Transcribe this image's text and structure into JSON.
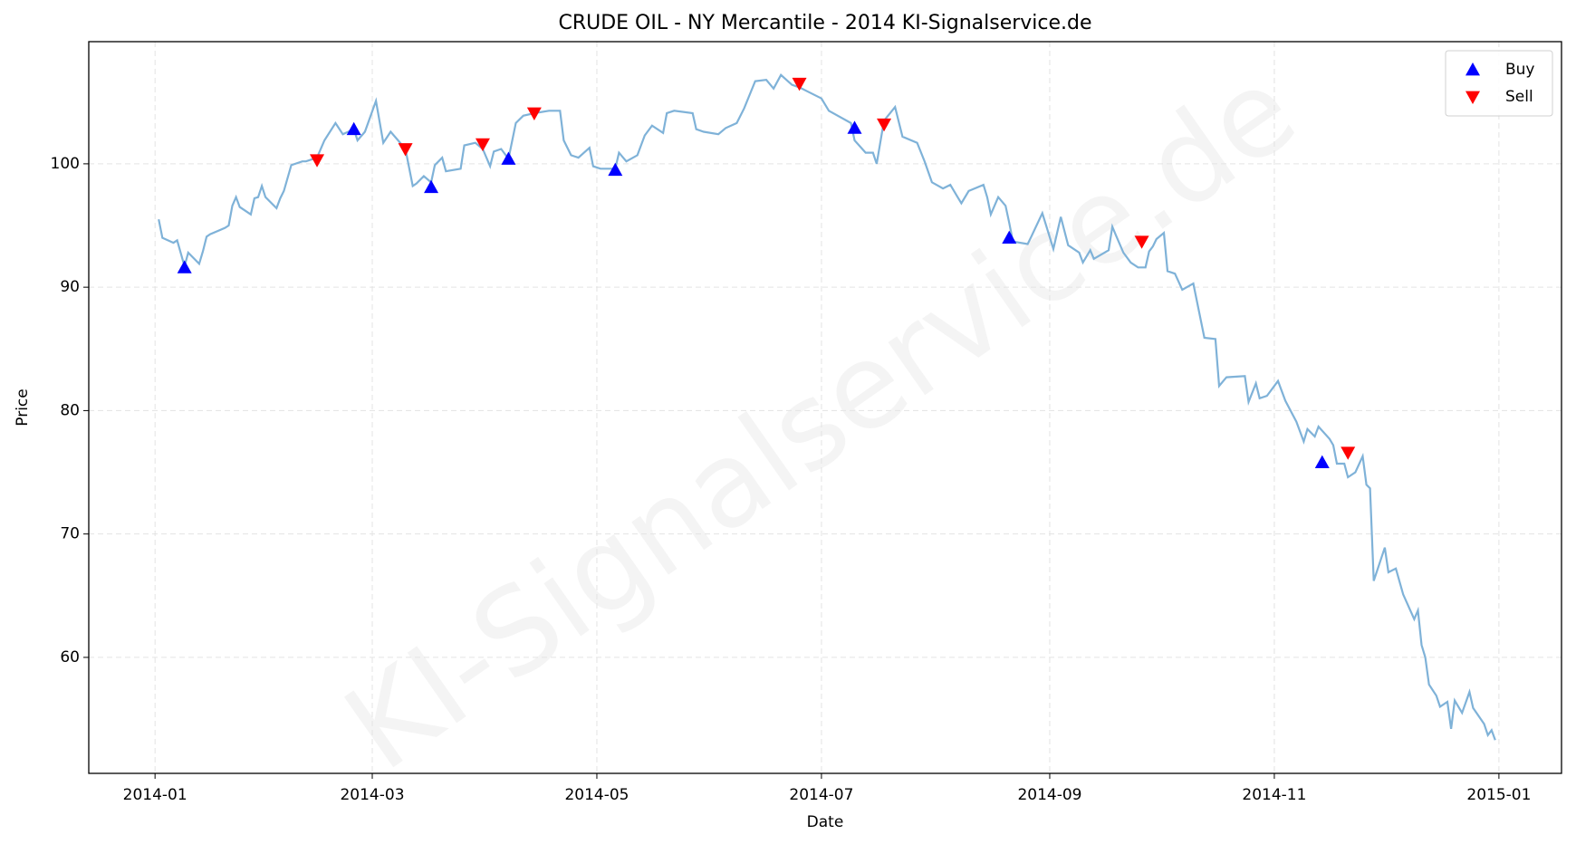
{
  "chart_data": {
    "type": "line",
    "title": "CRUDE OIL - NY Mercantile - 2014 KI-Signalservice.de",
    "watermark": "KI-Signalservice.de",
    "xlabel": "Date",
    "ylabel": "Price",
    "xlim": [
      "2013-12-14",
      "2015-01-18"
    ],
    "xticks": [
      {
        "value": "2014-01-01",
        "label": "2014-01"
      },
      {
        "value": "2014-03-01",
        "label": "2014-03"
      },
      {
        "value": "2014-05-01",
        "label": "2014-05"
      },
      {
        "value": "2014-07-01",
        "label": "2014-07"
      },
      {
        "value": "2014-09-01",
        "label": "2014-09"
      },
      {
        "value": "2014-11-01",
        "label": "2014-11"
      },
      {
        "value": "2015-01-01",
        "label": "2015-01"
      }
    ],
    "ylim": [
      50.6,
      109.9
    ],
    "yticks": [
      60,
      70,
      80,
      90,
      100
    ],
    "grid": true,
    "legend": "upper right",
    "series": [
      {
        "type": "line",
        "color": "#7fb2d8",
        "x": [
          "2014-01-02",
          "2014-01-03",
          "2014-01-06",
          "2014-01-07",
          "2014-01-09",
          "2014-01-10",
          "2014-01-13",
          "2014-01-14",
          "2014-01-15",
          "2014-01-16",
          "2014-01-20",
          "2014-01-21",
          "2014-01-22",
          "2014-01-23",
          "2014-01-24",
          "2014-01-27",
          "2014-01-28",
          "2014-01-29",
          "2014-01-30",
          "2014-01-31",
          "2014-02-03",
          "2014-02-04",
          "2014-02-05",
          "2014-02-07",
          "2014-02-10",
          "2014-02-11",
          "2014-02-14",
          "2014-02-16",
          "2014-02-19",
          "2014-02-21",
          "2014-02-24",
          "2014-02-25",
          "2014-02-27",
          "2014-03-02",
          "2014-03-04",
          "2014-03-06",
          "2014-03-08",
          "2014-03-10",
          "2014-03-12",
          "2014-03-13",
          "2014-03-15",
          "2014-03-17",
          "2014-03-18",
          "2014-03-20",
          "2014-03-21",
          "2014-03-25",
          "2014-03-26",
          "2014-03-29",
          "2014-03-31",
          "2014-04-02",
          "2014-04-03",
          "2014-04-05",
          "2014-04-07",
          "2014-04-09",
          "2014-04-11",
          "2014-04-14",
          "2014-04-18",
          "2014-04-21",
          "2014-04-22",
          "2014-04-24",
          "2014-04-26",
          "2014-04-29",
          "2014-04-30",
          "2014-05-02",
          "2014-05-06",
          "2014-05-07",
          "2014-05-09",
          "2014-05-12",
          "2014-05-14",
          "2014-05-16",
          "2014-05-19",
          "2014-05-20",
          "2014-05-22",
          "2014-05-27",
          "2014-05-28",
          "2014-05-30",
          "2014-06-03",
          "2014-06-05",
          "2014-06-08",
          "2014-06-10",
          "2014-06-13",
          "2014-06-16",
          "2014-06-18",
          "2014-06-20",
          "2014-06-23",
          "2014-06-25",
          "2014-07-01",
          "2014-07-03",
          "2014-07-09",
          "2014-07-10",
          "2014-07-13",
          "2014-07-15",
          "2014-07-16",
          "2014-07-18",
          "2014-07-21",
          "2014-07-23",
          "2014-07-27",
          "2014-07-29",
          "2014-07-31",
          "2014-08-03",
          "2014-08-05",
          "2014-08-07",
          "2014-08-08",
          "2014-08-10",
          "2014-08-14",
          "2014-08-15",
          "2014-08-16",
          "2014-08-18",
          "2014-08-20",
          "2014-08-21",
          "2014-08-22",
          "2014-08-26",
          "2014-08-27",
          "2014-08-30",
          "2014-09-02",
          "2014-09-04",
          "2014-09-06",
          "2014-09-09",
          "2014-09-10",
          "2014-09-12",
          "2014-09-13",
          "2014-09-17",
          "2014-09-18",
          "2014-09-19",
          "2014-09-21",
          "2014-09-23",
          "2014-09-25",
          "2014-09-27",
          "2014-09-28",
          "2014-09-29",
          "2014-09-30",
          "2014-10-02",
          "2014-10-03",
          "2014-10-05",
          "2014-10-07",
          "2014-10-10",
          "2014-10-13",
          "2014-10-16",
          "2014-10-17",
          "2014-10-19",
          "2014-10-24",
          "2014-10-25",
          "2014-10-27",
          "2014-10-28",
          "2014-10-30",
          "2014-11-02",
          "2014-11-04",
          "2014-11-07",
          "2014-11-09",
          "2014-11-10",
          "2014-11-12",
          "2014-11-13",
          "2014-11-16",
          "2014-11-17",
          "2014-11-18",
          "2014-11-20",
          "2014-11-21",
          "2014-11-23",
          "2014-11-25",
          "2014-11-26",
          "2014-11-27",
          "2014-11-28",
          "2014-12-01",
          "2014-12-02",
          "2014-12-04",
          "2014-12-06",
          "2014-12-09",
          "2014-12-10",
          "2014-12-11",
          "2014-12-12",
          "2014-12-13",
          "2014-12-15",
          "2014-12-16",
          "2014-12-18",
          "2014-12-19",
          "2014-12-20",
          "2014-12-22",
          "2014-12-24",
          "2014-12-25",
          "2014-12-28",
          "2014-12-29",
          "2014-12-30",
          "2014-12-31"
        ],
        "values": [
          95.5,
          94.0,
          93.6,
          93.8,
          91.7,
          92.8,
          91.9,
          92.9,
          94.1,
          94.3,
          94.8,
          95.0,
          96.6,
          97.3,
          96.5,
          95.9,
          97.2,
          97.3,
          98.2,
          97.3,
          96.4,
          97.2,
          97.8,
          99.9,
          100.2,
          100.2,
          100.5,
          101.9,
          103.3,
          102.4,
          102.8,
          101.9,
          102.6,
          105.1,
          101.7,
          102.6,
          101.9,
          101.2,
          98.2,
          98.4,
          99.0,
          98.5,
          99.9,
          100.5,
          99.4,
          99.6,
          101.5,
          101.7,
          101.2,
          99.8,
          101.0,
          101.2,
          100.4,
          103.3,
          103.9,
          104.1,
          104.3,
          104.3,
          101.9,
          100.7,
          100.5,
          101.3,
          99.8,
          99.6,
          99.6,
          100.9,
          100.2,
          100.7,
          102.3,
          103.1,
          102.5,
          104.1,
          104.3,
          104.1,
          102.8,
          102.6,
          102.4,
          102.9,
          103.3,
          104.5,
          106.7,
          106.8,
          106.1,
          107.2,
          106.4,
          106.2,
          105.3,
          104.3,
          103.3,
          101.9,
          100.9,
          100.9,
          100.0,
          103.5,
          104.6,
          102.2,
          101.7,
          100.2,
          98.5,
          98.0,
          98.3,
          97.3,
          96.8,
          97.8,
          98.3,
          97.3,
          95.9,
          97.3,
          96.6,
          95.2,
          93.7,
          93.5,
          94.1,
          96.0,
          93.1,
          95.7,
          93.4,
          92.8,
          92.0,
          93.0,
          92.3,
          93.0,
          94.9,
          94.2,
          92.8,
          92.0,
          91.6,
          91.6,
          92.9,
          93.3,
          93.9,
          94.4,
          91.3,
          91.1,
          89.8,
          90.3,
          85.9,
          85.8,
          82.0,
          82.7,
          82.8,
          80.7,
          82.2,
          81.0,
          81.2,
          82.4,
          80.8,
          79.1,
          77.5,
          78.5,
          77.9,
          78.7,
          77.7,
          77.2,
          75.7,
          75.7,
          74.6,
          75.0,
          76.3,
          74.0,
          73.7,
          66.2,
          68.9,
          66.9,
          67.2,
          65.1,
          63.1,
          63.8,
          61.0,
          60.0,
          57.8,
          56.9,
          56.0,
          56.4,
          54.2,
          56.5,
          55.5,
          57.2,
          55.9,
          54.6,
          53.7,
          54.1,
          53.3
        ]
      },
      {
        "name": "Buy",
        "type": "scatter",
        "marker": "triangle-up",
        "color": "#0000ff",
        "x": [
          "2014-01-09",
          "2014-02-24",
          "2014-03-17",
          "2014-04-07",
          "2014-05-06",
          "2014-07-10",
          "2014-08-21",
          "2014-11-14"
        ],
        "values": [
          91.6,
          102.8,
          98.1,
          100.4,
          99.5,
          102.9,
          94.0,
          75.8
        ]
      },
      {
        "name": "Sell",
        "type": "scatter",
        "marker": "triangle-down",
        "color": "#ff0000",
        "x": [
          "2014-02-14",
          "2014-03-10",
          "2014-03-31",
          "2014-04-14",
          "2014-06-25",
          "2014-07-18",
          "2014-09-26",
          "2014-11-21"
        ],
        "values": [
          100.3,
          101.2,
          101.6,
          104.1,
          106.5,
          103.2,
          93.7,
          76.6
        ]
      }
    ]
  }
}
